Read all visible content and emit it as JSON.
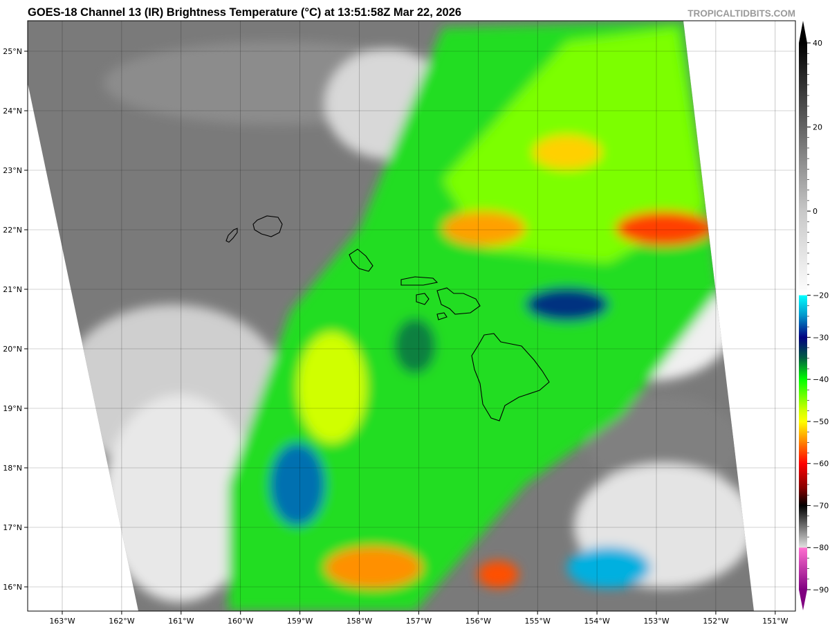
{
  "title": "GOES-18 Channel 13 (IR) Brightness Temperature (°C) at 13:51:58Z Mar 22, 2026",
  "watermark": "TROPICALTIDBITS.COM",
  "map": {
    "lon_ticks": [
      "163°W",
      "162°W",
      "161°W",
      "160°W",
      "159°W",
      "158°W",
      "157°W",
      "156°W",
      "155°W",
      "154°W",
      "153°W",
      "152°W",
      "151°W"
    ],
    "lat_ticks": [
      "25°N",
      "24°N",
      "23°N",
      "22°N",
      "21°N",
      "20°N",
      "19°N",
      "18°N",
      "17°N",
      "16°N"
    ],
    "grid": true,
    "coastlines": [
      "Niihau",
      "Kauai",
      "Oahu",
      "Molokai",
      "Lanai",
      "Maui",
      "Kahoolawe",
      "Hawaii"
    ]
  },
  "colorbar": {
    "ticks": [
      "40",
      "20",
      "0",
      "−20",
      "−30",
      "−40",
      "−50",
      "−60",
      "−70",
      "−80",
      "−90"
    ],
    "tick_values": [
      40,
      20,
      0,
      -20,
      -30,
      -40,
      -50,
      -60,
      -70,
      -80,
      -90
    ],
    "range": [
      -90,
      40
    ],
    "extend": "both",
    "stops": [
      {
        "t": 40,
        "color": "#000000"
      },
      {
        "t": 0,
        "color": "#c8c8c8"
      },
      {
        "t": -19.9,
        "color": "#ffffff"
      },
      {
        "t": -20,
        "color": "#00ffff"
      },
      {
        "t": -25,
        "color": "#0090c8"
      },
      {
        "t": -30,
        "color": "#000080"
      },
      {
        "t": -35,
        "color": "#006040"
      },
      {
        "t": -40,
        "color": "#00ff00"
      },
      {
        "t": -47,
        "color": "#c8ff00"
      },
      {
        "t": -50,
        "color": "#ffff00"
      },
      {
        "t": -55,
        "color": "#ff8000"
      },
      {
        "t": -60,
        "color": "#ff0000"
      },
      {
        "t": -66,
        "color": "#800000"
      },
      {
        "t": -70,
        "color": "#000000"
      },
      {
        "t": -79.9,
        "color": "#e0e0e0"
      },
      {
        "t": -80,
        "color": "#ff70d0"
      },
      {
        "t": -90,
        "color": "#800080"
      }
    ]
  }
}
